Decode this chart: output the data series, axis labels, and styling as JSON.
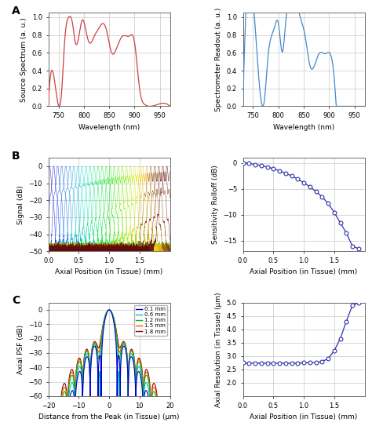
{
  "fig_width": 4.74,
  "fig_height": 5.43,
  "background_color": "#ffffff",
  "grid_color": "#c8c8c8",
  "panel_A_left": {
    "ylabel": "Source Spectrum (a. u.)",
    "xlabel": "Wavelength (nm)",
    "xlim": [
      730,
      970
    ],
    "ylim": [
      0,
      1.05
    ],
    "yticks": [
      0,
      0.2,
      0.4,
      0.6,
      0.8,
      1.0
    ],
    "xticks": [
      750,
      800,
      850,
      900,
      950
    ],
    "color": "#d04040"
  },
  "panel_A_right": {
    "ylabel": "Spectrometer Readout (a. u.)",
    "xlabel": "Wavelength (nm)",
    "xlim": [
      730,
      970
    ],
    "ylim": [
      0,
      1.05
    ],
    "yticks": [
      0,
      0.2,
      0.4,
      0.6,
      0.8,
      1.0
    ],
    "xticks": [
      750,
      800,
      850,
      900,
      950
    ],
    "color": "#4488cc"
  },
  "panel_B_left": {
    "ylabel": "Signal (dB)",
    "xlabel": "Axial Position (in Tissue) (mm)",
    "xlim": [
      0,
      2.0
    ],
    "ylim": [
      -50,
      5
    ],
    "yticks": [
      0,
      -10,
      -20,
      -30,
      -40,
      -50
    ],
    "xticks": [
      0,
      0.5,
      1.0,
      1.5
    ]
  },
  "panel_B_right": {
    "ylabel": "Sensitivity Rolloff (dB)",
    "xlabel": "Axial Position (in Tissue) (mm)",
    "xlim": [
      0,
      2.0
    ],
    "ylim": [
      -17,
      1
    ],
    "yticks": [
      0,
      -5,
      -10,
      -15
    ],
    "xticks": [
      0,
      0.5,
      1.0,
      1.5
    ],
    "color": "#3333aa"
  },
  "panel_C_left": {
    "ylabel": "Axial PSF (dB)",
    "xlabel": "Distance from the Peak (in Tissue) (μm)",
    "xlim": [
      -20,
      20
    ],
    "ylim": [
      -60,
      5
    ],
    "yticks": [
      0,
      -10,
      -20,
      -30,
      -40,
      -50,
      -60
    ],
    "xticks": [
      -20,
      -10,
      0,
      10,
      20
    ],
    "legend": [
      "0.1 mm",
      "0.6 mm",
      "1.2 mm",
      "1.5 mm",
      "1.8 mm"
    ],
    "legend_colors": [
      "#0000cc",
      "#00bbbb",
      "#00bb00",
      "#ff5500",
      "#880000"
    ]
  },
  "panel_C_right": {
    "ylabel": "Axial Resolution (in Tissue) (μm)",
    "xlabel": "Axial Position (in Tissue) (mm)",
    "xlim": [
      0,
      2.0
    ],
    "ylim": [
      1.5,
      5.0
    ],
    "yticks": [
      2.0,
      2.5,
      3.0,
      3.5,
      4.0,
      4.5,
      5.0
    ],
    "xticks": [
      0,
      0.5,
      1.0,
      1.5
    ],
    "color": "#3333aa"
  },
  "label_fontsize": 6.5,
  "tick_fontsize": 6,
  "panel_label_fontsize": 10,
  "rolloff_x": [
    0.0,
    0.1,
    0.2,
    0.3,
    0.4,
    0.5,
    0.6,
    0.7,
    0.8,
    0.9,
    1.0,
    1.1,
    1.2,
    1.3,
    1.4,
    1.5,
    1.6,
    1.7,
    1.8,
    1.9
  ],
  "rolloff_y": [
    0.0,
    -0.1,
    -0.3,
    -0.5,
    -0.8,
    -1.1,
    -1.5,
    -2.0,
    -2.5,
    -3.1,
    -3.8,
    -4.6,
    -5.5,
    -6.5,
    -7.8,
    -9.5,
    -11.5,
    -13.5,
    -16.0,
    -16.5
  ],
  "res_x": [
    0.0,
    0.1,
    0.2,
    0.3,
    0.4,
    0.5,
    0.6,
    0.7,
    0.8,
    0.9,
    1.0,
    1.1,
    1.2,
    1.3,
    1.4,
    1.5,
    1.6,
    1.7,
    1.8,
    1.9
  ],
  "res_y": [
    2.75,
    2.73,
    2.74,
    2.73,
    2.74,
    2.73,
    2.74,
    2.73,
    2.74,
    2.73,
    2.75,
    2.75,
    2.76,
    2.8,
    2.9,
    3.2,
    3.65,
    4.3,
    4.9,
    5.0
  ],
  "source_pts_x": [
    730,
    752,
    756,
    762,
    770,
    778,
    783,
    790,
    797,
    803,
    810,
    820,
    830,
    838,
    845,
    855,
    863,
    875,
    890,
    900,
    910,
    920,
    930,
    970
  ],
  "source_pts_y": [
    0.0,
    0.0,
    0.15,
    0.72,
    1.0,
    0.92,
    0.72,
    0.78,
    0.97,
    0.88,
    0.72,
    0.78,
    0.88,
    0.93,
    0.85,
    0.6,
    0.63,
    0.78,
    0.79,
    0.72,
    0.2,
    0.02,
    0.0,
    0.0
  ],
  "spec_pts_x": [
    730,
    769,
    773,
    778,
    792,
    800,
    808,
    814,
    843,
    853,
    862,
    880,
    893,
    909,
    914,
    970
  ],
  "spec_pts_y": [
    0.0,
    0.0,
    0.1,
    0.47,
    0.88,
    0.93,
    0.61,
    0.93,
    1.0,
    0.78,
    0.46,
    0.59,
    0.59,
    0.38,
    0.0,
    0.0
  ]
}
